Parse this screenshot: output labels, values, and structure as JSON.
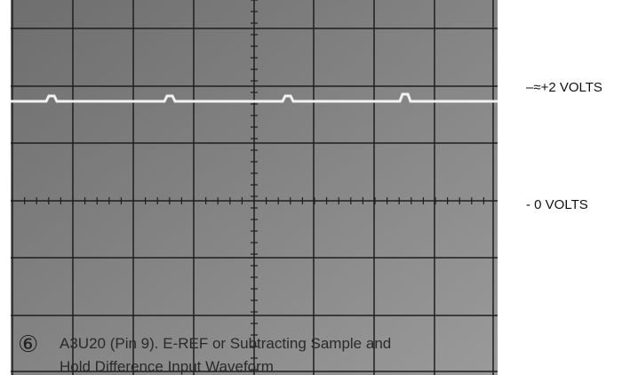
{
  "labels": {
    "upper": "–≈+2 VOLTS",
    "zero": "- 0 VOLTS"
  },
  "figure": {
    "number": "⑥",
    "caption_lines": [
      "A3U20 (Pin 9). E-REF or Subtracting Sample and",
      "Hold Difference Input Waveform"
    ]
  }
}
